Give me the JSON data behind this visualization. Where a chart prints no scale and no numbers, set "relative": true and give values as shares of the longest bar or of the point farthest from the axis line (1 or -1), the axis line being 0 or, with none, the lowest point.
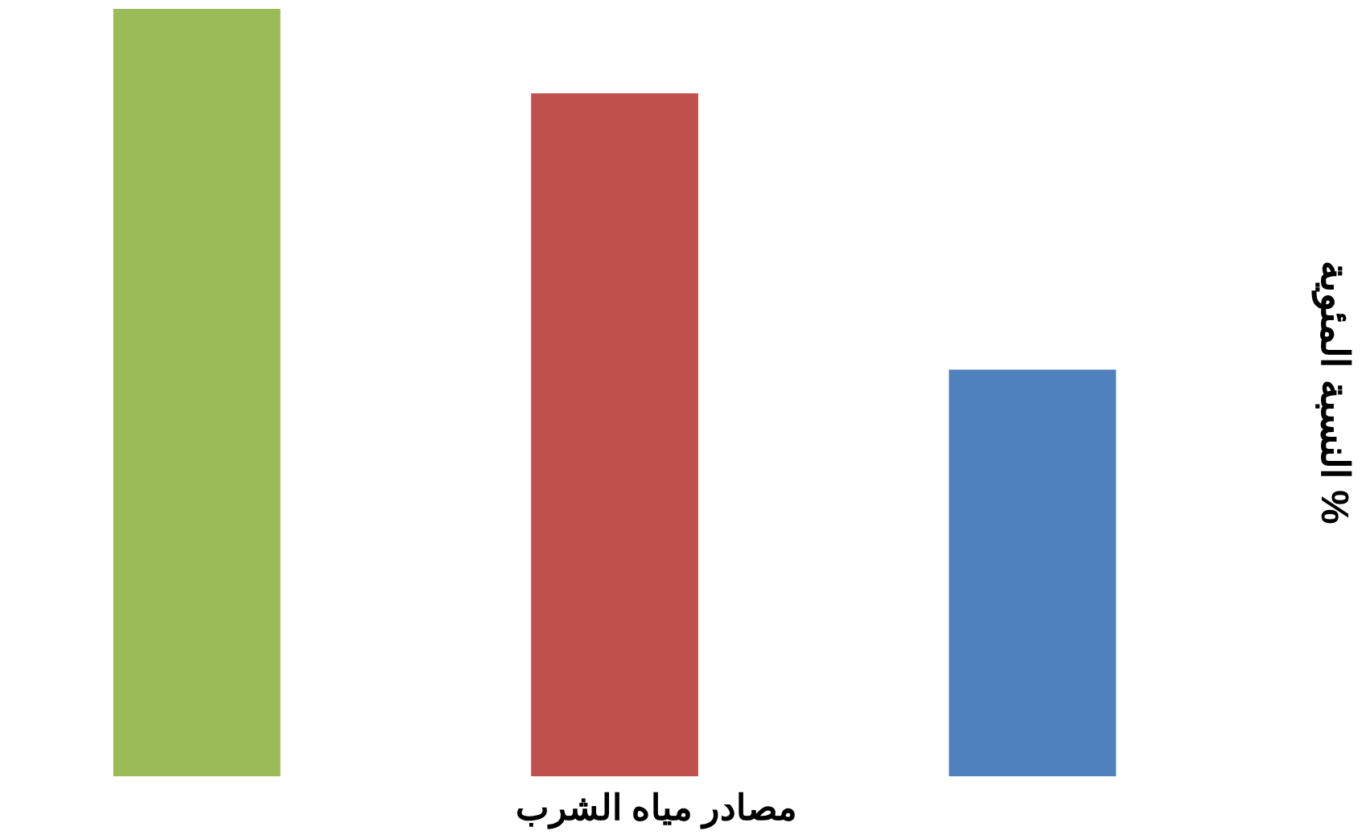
{
  "chart_data": {
    "type": "bar",
    "xlabel": "مصادر مياه الشرب",
    "ylabel": "النسبة المئوية %",
    "relative": true,
    "categories": [
      null,
      null,
      null
    ],
    "values": [
      1,
      0.89,
      0.53
    ],
    "colors": [
      "#9bbb59",
      "#c0504d",
      "#4f81bd"
    ],
    "grid": false
  }
}
